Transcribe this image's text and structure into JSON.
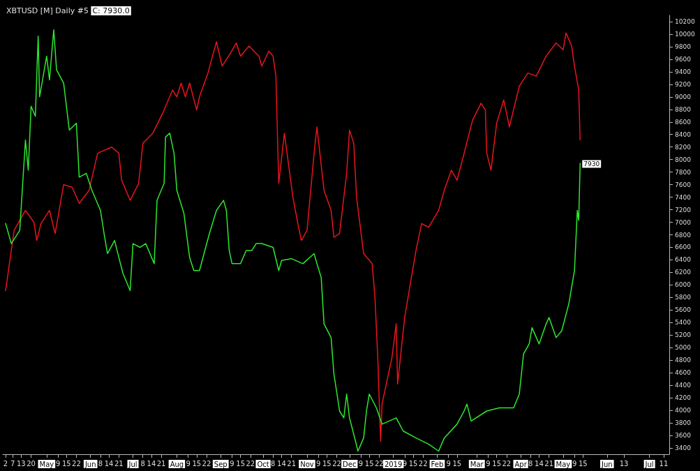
{
  "chart_data": {
    "type": "line",
    "title": "XBTUSD [M] Daily #5",
    "annotations": [
      "C: 7930.0",
      {
        "text": "7930",
        "x": "2019-05-13",
        "y": 7930
      }
    ],
    "series": [
      {
        "color": "#e8141c",
        "x": [
          "2018-04-02",
          "2018-04-08",
          "2018-04-16",
          "2018-04-22",
          "2018-04-24",
          "2018-04-27",
          "2018-05-03",
          "2018-05-07",
          "2018-05-13",
          "2018-05-19",
          "2018-05-24",
          "2018-05-31",
          "2018-06-06",
          "2018-06-16",
          "2018-06-21",
          "2018-06-23",
          "2018-06-29",
          "2018-07-05",
          "2018-07-08",
          "2018-07-15",
          "2018-07-22",
          "2018-07-29",
          "2018-08-01",
          "2018-08-04",
          "2018-08-07",
          "2018-08-10",
          "2018-08-15",
          "2018-08-17",
          "2018-08-23",
          "2018-08-29",
          "2018-09-02",
          "2018-09-08",
          "2018-09-12",
          "2018-09-15",
          "2018-09-21",
          "2018-09-28",
          "2018-09-30",
          "2018-10-05",
          "2018-10-08",
          "2018-10-10",
          "2018-10-12",
          "2018-10-16",
          "2018-10-22",
          "2018-10-26",
          "2018-10-28",
          "2018-11-01",
          "2018-11-06",
          "2018-11-08",
          "2018-11-13",
          "2018-11-18",
          "2018-11-20",
          "2018-11-24",
          "2018-11-29",
          "2018-12-01",
          "2018-12-04",
          "2018-12-06",
          "2018-12-11",
          "2018-12-17",
          "2018-12-19",
          "2018-12-21",
          "2018-12-23",
          "2018-12-24",
          "2018-12-29",
          "2018-12-31",
          "2019-01-03",
          "2019-01-04",
          "2019-01-09",
          "2019-01-13",
          "2019-01-17",
          "2019-01-21",
          "2019-01-26",
          "2019-02-02",
          "2019-02-06",
          "2019-02-11",
          "2019-02-15",
          "2019-02-20",
          "2019-02-26",
          "2019-03-04",
          "2019-03-07",
          "2019-03-08",
          "2019-03-11",
          "2019-03-15",
          "2019-03-20",
          "2019-03-24",
          "2019-03-31",
          "2019-04-06",
          "2019-04-12",
          "2019-04-19",
          "2019-04-26",
          "2019-05-01",
          "2019-05-03",
          "2019-05-07",
          "2019-05-09",
          "2019-05-12",
          "2019-05-13"
        ],
        "values": [
          5910,
          6870,
          7190,
          7000,
          6710,
          6980,
          7190,
          6820,
          7600,
          7560,
          7300,
          7510,
          8100,
          8200,
          8100,
          7670,
          7350,
          7620,
          8260,
          8420,
          8740,
          9110,
          9000,
          9220,
          9000,
          9220,
          8790,
          9000,
          9380,
          9880,
          9490,
          9700,
          9860,
          9650,
          9810,
          9650,
          9490,
          9730,
          9650,
          9330,
          7620,
          8420,
          7400,
          6920,
          6710,
          6870,
          8100,
          8520,
          7510,
          7190,
          6760,
          6820,
          7780,
          8470,
          8260,
          7400,
          6500,
          6340,
          5800,
          4840,
          3510,
          4100,
          4630,
          4840,
          5380,
          4420,
          5480,
          6020,
          6550,
          6980,
          6920,
          7190,
          7510,
          7830,
          7670,
          8100,
          8630,
          8900,
          8790,
          8100,
          7830,
          8580,
          8950,
          8520,
          9170,
          9380,
          9330,
          9650,
          9860,
          9750,
          10020,
          9810,
          9490,
          9110,
          8310
        ]
      },
      {
        "color": "#2ee82e",
        "x": [
          "2018-04-02",
          "2018-04-06",
          "2018-04-12",
          "2018-04-16",
          "2018-04-18",
          "2018-04-20",
          "2018-04-23",
          "2018-04-25",
          "2018-04-26",
          "2018-05-01",
          "2018-05-03",
          "2018-05-06",
          "2018-05-08",
          "2018-05-13",
          "2018-05-17",
          "2018-05-22",
          "2018-05-24",
          "2018-05-29",
          "2018-06-02",
          "2018-06-08",
          "2018-06-11",
          "2018-06-13",
          "2018-06-18",
          "2018-06-21",
          "2018-06-24",
          "2018-06-29",
          "2018-07-01",
          "2018-07-06",
          "2018-07-10",
          "2018-07-16",
          "2018-07-18",
          "2018-07-23",
          "2018-07-24",
          "2018-07-27",
          "2018-07-30",
          "2018-08-01",
          "2018-08-06",
          "2018-08-10",
          "2018-08-13",
          "2018-08-17",
          "2018-08-24",
          "2018-08-29",
          "2018-09-03",
          "2018-09-05",
          "2018-09-07",
          "2018-09-09",
          "2018-09-15",
          "2018-09-19",
          "2018-09-23",
          "2018-09-26",
          "2018-09-30",
          "2018-10-08",
          "2018-10-12",
          "2018-10-14",
          "2018-10-21",
          "2018-10-29",
          "2018-11-06",
          "2018-11-08",
          "2018-11-11",
          "2018-11-13",
          "2018-11-18",
          "2018-11-20",
          "2018-11-24",
          "2018-11-27",
          "2018-11-29",
          "2018-12-01",
          "2018-12-04",
          "2018-12-07",
          "2018-12-11",
          "2018-12-13",
          "2018-12-15",
          "2018-12-20",
          "2018-12-24",
          "2018-12-29",
          "2019-01-03",
          "2019-01-08",
          "2019-01-17",
          "2019-01-26",
          "2019-02-02",
          "2019-02-06",
          "2019-02-15",
          "2019-02-20",
          "2019-02-22",
          "2019-02-25",
          "2019-03-08",
          "2019-03-17",
          "2019-03-27",
          "2019-03-31",
          "2019-04-03",
          "2019-04-07",
          "2019-04-09",
          "2019-04-14",
          "2019-04-19",
          "2019-04-21",
          "2019-04-26",
          "2019-04-30",
          "2019-05-05",
          "2019-05-09",
          "2019-05-11",
          "2019-05-12",
          "2019-05-13"
        ],
        "values": [
          6980,
          6660,
          6870,
          8310,
          7830,
          8850,
          8690,
          9970,
          9000,
          9650,
          9270,
          10070,
          9430,
          9220,
          8470,
          8580,
          7720,
          7780,
          7510,
          7190,
          6760,
          6500,
          6710,
          6440,
          6180,
          5910,
          6660,
          6600,
          6660,
          6340,
          7350,
          7620,
          8360,
          8420,
          8100,
          7510,
          7140,
          6440,
          6230,
          6230,
          6820,
          7190,
          7350,
          7190,
          6550,
          6340,
          6340,
          6550,
          6550,
          6660,
          6660,
          6600,
          6230,
          6390,
          6420,
          6340,
          6500,
          6340,
          6120,
          5380,
          5160,
          4580,
          3990,
          3880,
          4260,
          3880,
          3620,
          3350,
          3560,
          3990,
          4260,
          4040,
          3780,
          3830,
          3880,
          3670,
          3560,
          3460,
          3350,
          3560,
          3780,
          3990,
          4100,
          3830,
          3990,
          4040,
          4040,
          4260,
          4900,
          5060,
          5320,
          5060,
          5380,
          5480,
          5160,
          5270,
          5700,
          6230,
          7190,
          7030,
          7940
        ]
      }
    ],
    "xlim": [
      "2018-03-31",
      "2019-07-15"
    ],
    "xticks": [
      {
        "value": "2018-04-02",
        "label": "2"
      },
      {
        "value": "2018-04-07",
        "label": "7"
      },
      {
        "value": "2018-04-13",
        "label": "13"
      },
      {
        "value": "2018-04-20",
        "label": "20"
      },
      {
        "value": "2018-05-01",
        "label": "May"
      },
      {
        "value": "2018-05-09",
        "label": "9"
      },
      {
        "value": "2018-05-15",
        "label": "15"
      },
      {
        "value": "2018-05-22",
        "label": "22"
      },
      {
        "value": "2018-06-01",
        "label": "Jun"
      },
      {
        "value": "2018-06-08",
        "label": "8"
      },
      {
        "value": "2018-06-14",
        "label": "14"
      },
      {
        "value": "2018-06-21",
        "label": "21"
      },
      {
        "value": "2018-07-01",
        "label": "Jul"
      },
      {
        "value": "2018-07-08",
        "label": "8"
      },
      {
        "value": "2018-07-14",
        "label": "14"
      },
      {
        "value": "2018-07-21",
        "label": "21"
      },
      {
        "value": "2018-08-01",
        "label": "Aug"
      },
      {
        "value": "2018-08-09",
        "label": "9"
      },
      {
        "value": "2018-08-15",
        "label": "15"
      },
      {
        "value": "2018-08-22",
        "label": "22"
      },
      {
        "value": "2018-09-01",
        "label": "Sep"
      },
      {
        "value": "2018-09-09",
        "label": "9"
      },
      {
        "value": "2018-09-15",
        "label": "15"
      },
      {
        "value": "2018-09-22",
        "label": "22"
      },
      {
        "value": "2018-10-01",
        "label": "Oct"
      },
      {
        "value": "2018-10-08",
        "label": "8"
      },
      {
        "value": "2018-10-14",
        "label": "14"
      },
      {
        "value": "2018-10-21",
        "label": "21"
      },
      {
        "value": "2018-11-01",
        "label": "Nov"
      },
      {
        "value": "2018-11-09",
        "label": "9"
      },
      {
        "value": "2018-11-15",
        "label": "15"
      },
      {
        "value": "2018-11-22",
        "label": "22"
      },
      {
        "value": "2018-12-01",
        "label": "Dec"
      },
      {
        "value": "2018-12-09",
        "label": "9"
      },
      {
        "value": "2018-12-15",
        "label": "15"
      },
      {
        "value": "2018-12-22",
        "label": "22"
      },
      {
        "value": "2019-01-01",
        "label": "2019"
      },
      {
        "value": "2019-01-09",
        "label": "9"
      },
      {
        "value": "2019-01-15",
        "label": "15"
      },
      {
        "value": "2019-01-22",
        "label": "22"
      },
      {
        "value": "2019-02-01",
        "label": "Feb"
      },
      {
        "value": "2019-02-09",
        "label": "9"
      },
      {
        "value": "2019-02-15",
        "label": "15"
      },
      {
        "value": "2019-03-01",
        "label": "Mar"
      },
      {
        "value": "2019-03-09",
        "label": "9"
      },
      {
        "value": "2019-03-15",
        "label": "15"
      },
      {
        "value": "2019-03-22",
        "label": "22"
      },
      {
        "value": "2019-04-01",
        "label": "Apr"
      },
      {
        "value": "2019-04-08",
        "label": "8"
      },
      {
        "value": "2019-04-14",
        "label": "14"
      },
      {
        "value": "2019-04-21",
        "label": "21"
      },
      {
        "value": "2019-05-01",
        "label": "May"
      },
      {
        "value": "2019-05-09",
        "label": "9"
      },
      {
        "value": "2019-05-15",
        "label": "15"
      },
      {
        "value": "2019-06-01",
        "label": "Jun"
      },
      {
        "value": "2019-06-13",
        "label": "13"
      },
      {
        "value": "2019-07-01",
        "label": "Jul"
      },
      {
        "value": "2019-07-11",
        "label": "11"
      }
    ],
    "ylim": [
      3300,
      10300
    ],
    "yticks": [
      3400,
      3600,
      3800,
      4000,
      4200,
      4400,
      4600,
      4800,
      5000,
      5200,
      5400,
      5600,
      5800,
      6000,
      6200,
      6400,
      6600,
      6800,
      7000,
      7200,
      7400,
      7600,
      7800,
      8000,
      8200,
      8400,
      8600,
      8800,
      9000,
      9200,
      9400,
      9600,
      9800,
      10000,
      10200
    ],
    "grid": false
  }
}
